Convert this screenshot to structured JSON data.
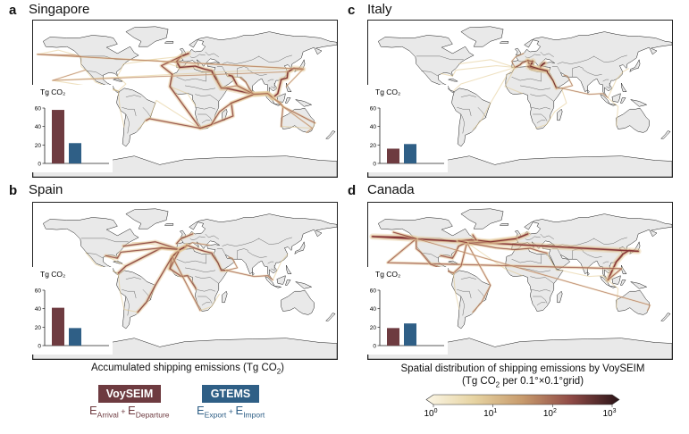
{
  "panels": [
    {
      "letter": "a",
      "title": "Singapore",
      "hub": "singapore"
    },
    {
      "letter": "c",
      "title": "Italy",
      "hub": "italy"
    },
    {
      "letter": "b",
      "title": "Spain",
      "hub": "spain"
    },
    {
      "letter": "d",
      "title": "Canada",
      "hub": "canada"
    }
  ],
  "chart_data": {
    "type": "bar",
    "ylabel": "Tg CO₂",
    "ylim": [
      0,
      60
    ],
    "yticks": [
      0,
      20,
      40,
      60
    ],
    "series": [
      {
        "name": "VoySEIM",
        "color": "#6e3b40"
      },
      {
        "name": "GTEMS",
        "color": "#2f5f86"
      }
    ],
    "panels": [
      {
        "name": "Singapore",
        "values": [
          58,
          22
        ]
      },
      {
        "name": "Italy",
        "values": [
          16,
          21
        ]
      },
      {
        "name": "Spain",
        "values": [
          41,
          19
        ]
      },
      {
        "name": "Canada",
        "values": [
          19,
          24
        ]
      }
    ]
  },
  "legend": {
    "title_main": "Accumulated shipping emissions (Tg CO",
    "title_sub": "2",
    "title_end": ")",
    "voyseim_label": "VoySEIM",
    "gtems_label": "GTEMS",
    "voyseim_formula": {
      "e1": "E",
      "s1": "Arrival",
      "plus": " + ",
      "e2": "E",
      "s2": "Departure"
    },
    "gtems_formula": {
      "e1": "E",
      "s1": "Export",
      "plus": " + ",
      "e2": "E",
      "s2": "Import"
    }
  },
  "colorbar": {
    "title_line1": "Spatial distribution of shipping emissions by VoySEIM",
    "title_line2_a": "(Tg CO",
    "title_line2_sub": "2",
    "title_line2_b": " per 0.1°×0.1°grid)",
    "tick_base": "10",
    "tick_exponents": [
      "0",
      "1",
      "2",
      "3"
    ],
    "stops": [
      "#fbf6e6",
      "#e6d3a1",
      "#c79a6c",
      "#8f4a46",
      "#2a1418"
    ]
  }
}
